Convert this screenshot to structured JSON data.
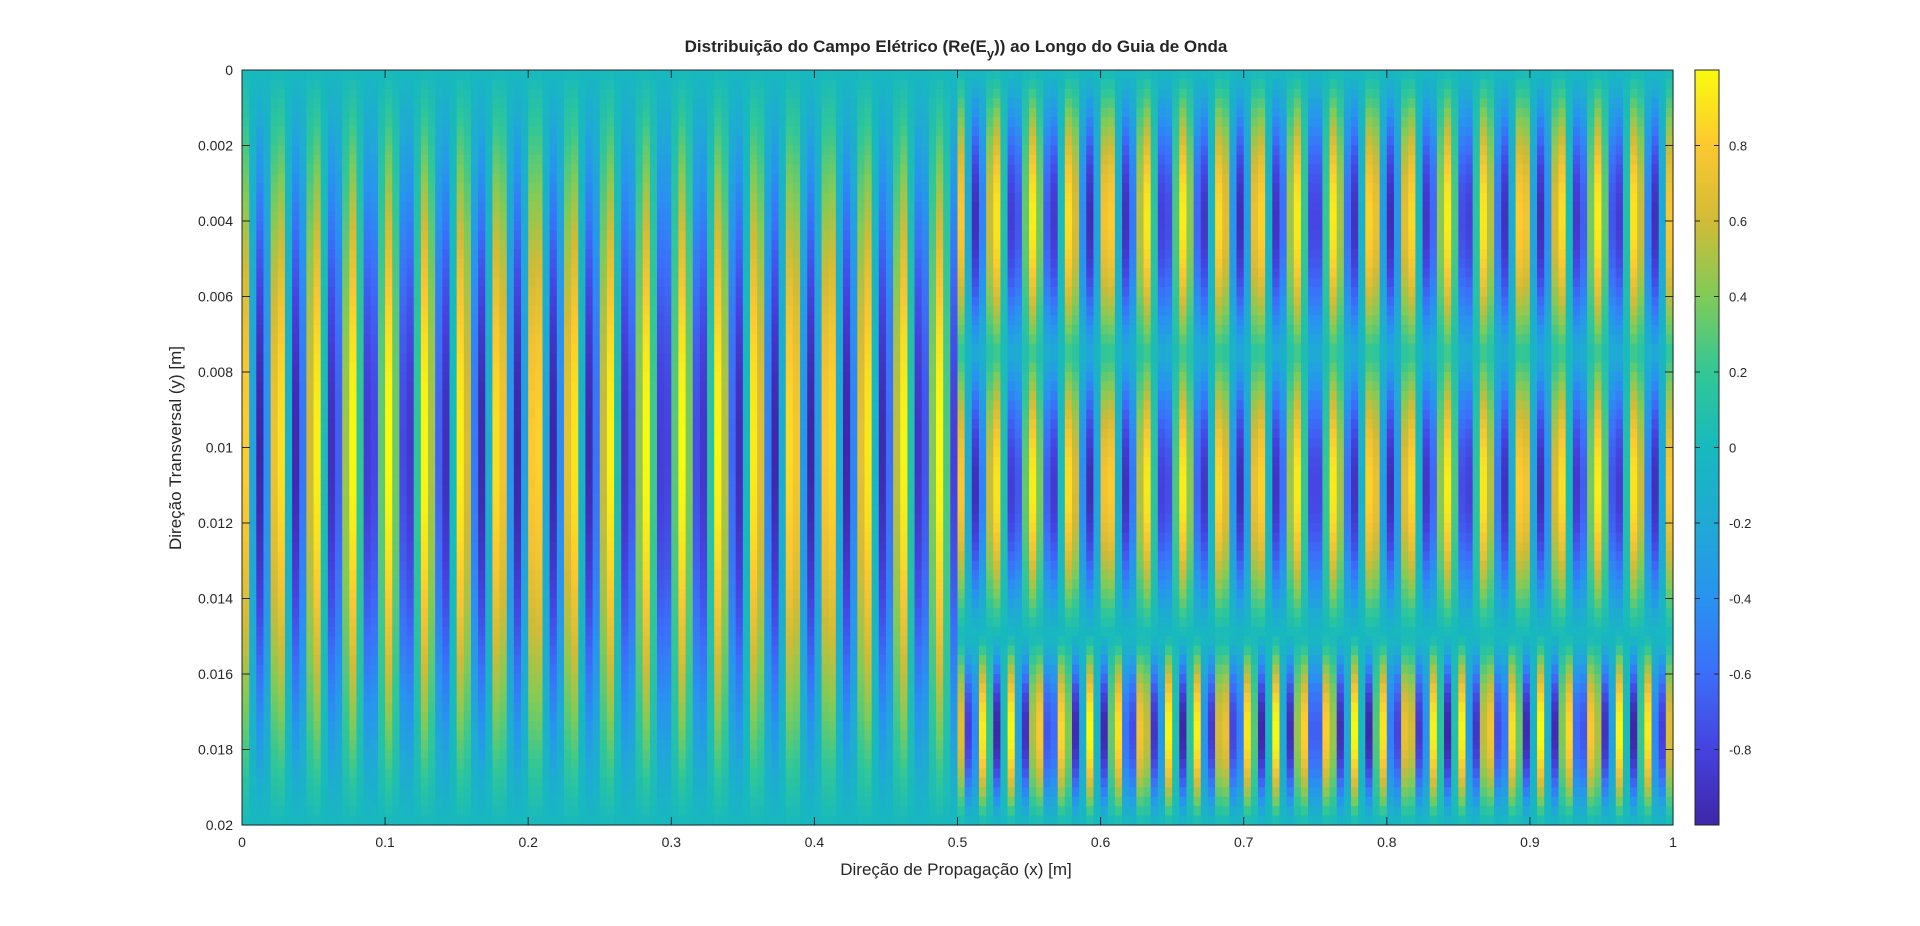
{
  "chart_data": {
    "type": "heatmap",
    "title": "Distribuição do Campo Elétrico (Re(E",
    "title_sub": "y",
    "title_end": ")) ao Longo do Guia de Onda",
    "xlabel": "Direção de Propagação (x) [m]",
    "ylabel": "Direção Transversal (y) [m]",
    "xlim": [
      0,
      1
    ],
    "ylim": [
      0,
      0.02
    ],
    "y_reversed": true,
    "x_ticks": [
      "0",
      "0.1",
      "0.2",
      "0.3",
      "0.4",
      "0.5",
      "0.6",
      "0.7",
      "0.8",
      "0.9",
      "1"
    ],
    "x_tick_values": [
      0,
      0.1,
      0.2,
      0.3,
      0.4,
      0.5,
      0.6,
      0.7,
      0.8,
      0.9,
      1
    ],
    "y_ticks": [
      "0",
      "0.002",
      "0.004",
      "0.006",
      "0.008",
      "0.01",
      "0.012",
      "0.014",
      "0.016",
      "0.018",
      "0.02"
    ],
    "y_tick_values": [
      0,
      0.002,
      0.004,
      0.006,
      0.008,
      0.01,
      0.012,
      0.014,
      0.016,
      0.018,
      0.02
    ],
    "colorbar": {
      "colormap": "parula",
      "range": [
        -1,
        1
      ],
      "ticks": [
        "0.8",
        "0.6",
        "0.4",
        "0.2",
        "0",
        "-0.2",
        "-0.4",
        "-0.6",
        "-0.8"
      ],
      "tick_values": [
        0.8,
        0.6,
        0.4,
        0.2,
        0,
        -0.2,
        -0.4,
        -0.6,
        -0.8
      ]
    },
    "regions": [
      {
        "x_range": [
          0,
          0.5
        ],
        "y_range": [
          0,
          0.02
        ],
        "mode_profile": "sin(pi*y/0.02)",
        "periods": 19.5
      },
      {
        "x_range": [
          0.5,
          1
        ],
        "y_range": [
          0,
          0.015
        ],
        "mode_profile": "sin(2*pi*y/0.015)",
        "periods": 19
      },
      {
        "x_range": [
          0.5,
          1
        ],
        "y_range": [
          0.015,
          0.02
        ],
        "mode_profile": "sin(pi*(y-0.015)/0.005)",
        "periods": 27
      }
    ],
    "grid": false,
    "colors": {
      "dark_blue": "#3e26a8",
      "teal": "#18b4c4",
      "yellow": "#f9fb0e"
    }
  }
}
